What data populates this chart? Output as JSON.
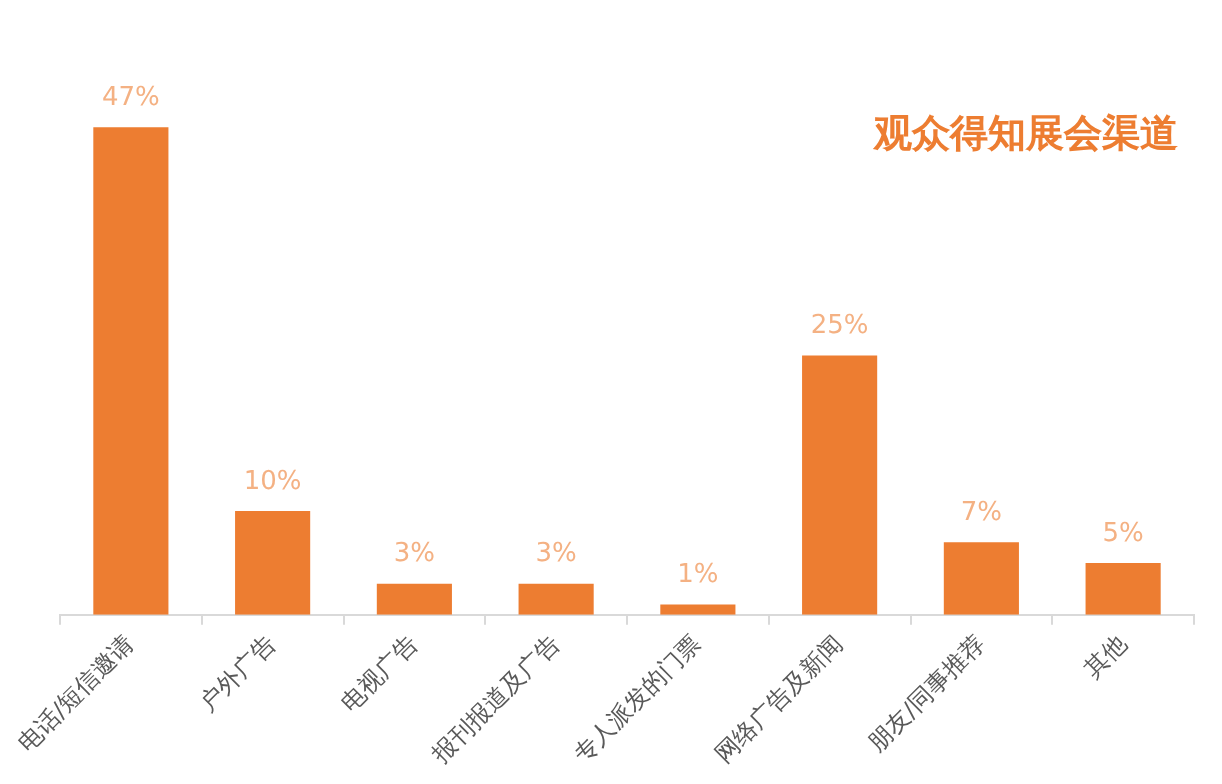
{
  "chart_data": {
    "type": "bar",
    "title": "观众得知展会渠道",
    "categories": [
      "电话/短信邀请",
      "户外广告",
      "电视广告",
      "报刊报道及广告",
      "专人派发的门票",
      "网络广告及新闻",
      "朋友/同事推荐",
      "其他"
    ],
    "values": [
      47,
      10,
      3,
      3,
      1,
      25,
      7,
      5
    ],
    "value_labels": [
      "47%",
      "10%",
      "3%",
      "3%",
      "1%",
      "25%",
      "7%",
      "5%"
    ],
    "color": "#ed7d31",
    "grid": false,
    "legend": false
  }
}
